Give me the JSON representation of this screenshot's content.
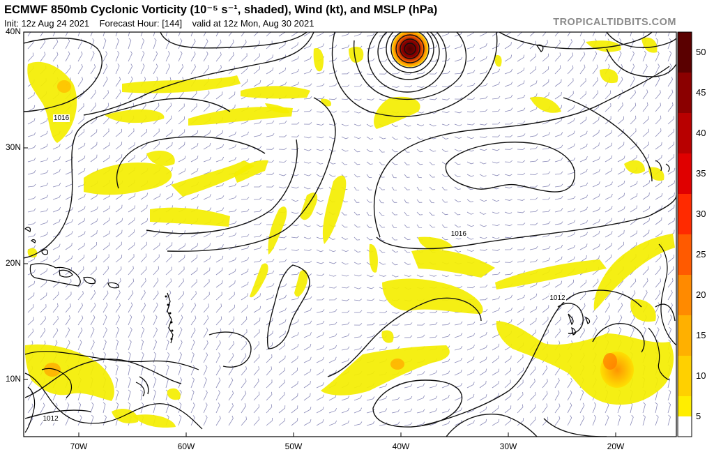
{
  "header": {
    "title": "ECMWF 850mb Cyclonic Vorticity (10⁻⁵ s⁻¹, shaded), Wind (kt), and MSLP (hPa)",
    "init": "Init: 12z Aug 24 2021",
    "forecast": "Forecast Hour: [144]",
    "valid": "valid at 12z Mon, Aug 30 2021",
    "credit": "TROPICALTIDBITS.COM"
  },
  "axes": {
    "lat_labels": [
      "40N",
      "30N",
      "20N",
      "10N"
    ],
    "lon_labels": [
      "70W",
      "60W",
      "50W",
      "40W",
      "30W",
      "20W"
    ]
  },
  "colorbar": {
    "labels": [
      "50",
      "45",
      "40",
      "35",
      "30",
      "25",
      "20",
      "15",
      "10",
      "5"
    ],
    "colors": [
      "#5a0000",
      "#8b0000",
      "#b80000",
      "#e00000",
      "#ff2a00",
      "#ff5a00",
      "#ff8a00",
      "#ffb000",
      "#ffd000",
      "#ffee00"
    ]
  },
  "contour_labels": [
    {
      "text": "1016",
      "lon": -71.5,
      "lat": 32.5
    },
    {
      "text": "1016",
      "lon": -34.5,
      "lat": 22.5
    },
    {
      "text": "1012",
      "lon": -25.3,
      "lat": 16.9
    },
    {
      "text": "1012",
      "lon": -72.5,
      "lat": 6.5
    }
  ],
  "features": {
    "low_center": {
      "lon": -39.0,
      "lat": 38.5
    }
  }
}
